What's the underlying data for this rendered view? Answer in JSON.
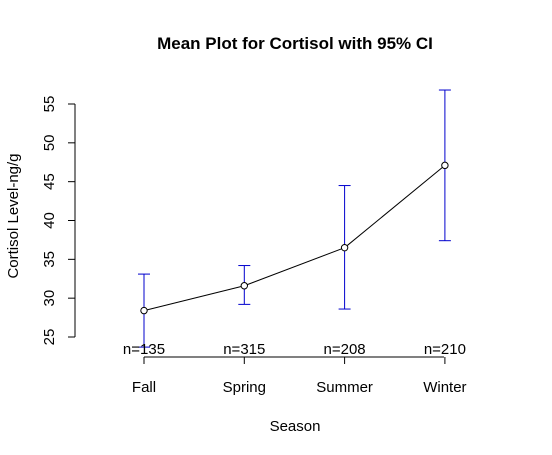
{
  "chart_data": {
    "type": "line",
    "title": "Mean Plot for Cortisol with 95% CI",
    "xlabel": "Season",
    "ylabel": "Cortisol Level-ng/g",
    "ylim": [
      25,
      57
    ],
    "yticks": [
      25,
      30,
      35,
      40,
      45,
      50,
      55
    ],
    "categories": [
      "Fall",
      "Spring",
      "Summer",
      "Winter"
    ],
    "series": [
      {
        "values": [
          28.4,
          31.6,
          36.5,
          47.1
        ],
        "ci_lower": [
          23.7,
          29.2,
          28.6,
          37.4
        ],
        "ci_upper": [
          33.1,
          34.2,
          44.5,
          56.8
        ]
      }
    ],
    "sample_sizes": [
      "n=135",
      "n=315",
      "n=208",
      "n=210"
    ],
    "grid": false,
    "colors": {
      "line": "#000000",
      "errorbar": "#0000CD"
    }
  }
}
